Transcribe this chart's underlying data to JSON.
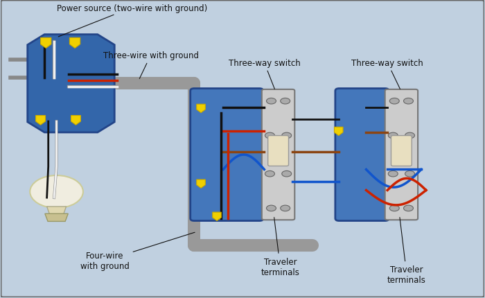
{
  "bg_color": "#c0d0e0",
  "border_color": "#666666",
  "junction_box_color": "#3366aa",
  "switch_box_color": "#4477bb",
  "conduit_color": "#999999",
  "wire_black": "#111111",
  "wire_white": "#f0f0f0",
  "wire_red": "#cc2200",
  "wire_blue": "#1155cc",
  "wire_brown": "#8B4513",
  "wire_nut_color": "#f0d000",
  "wire_nut_edge": "#c8a800",
  "labels": {
    "power_source": "Power source (two-wire with ground)",
    "three_wire": "Three-wire with ground",
    "four_wire": "Four-wire\nwith ground",
    "switch1": "Three-way switch",
    "switch2": "Three-way switch",
    "traveler1": "Traveler\nterminals",
    "traveler2": "Traveler\nterminals"
  },
  "font_size": 8.5
}
